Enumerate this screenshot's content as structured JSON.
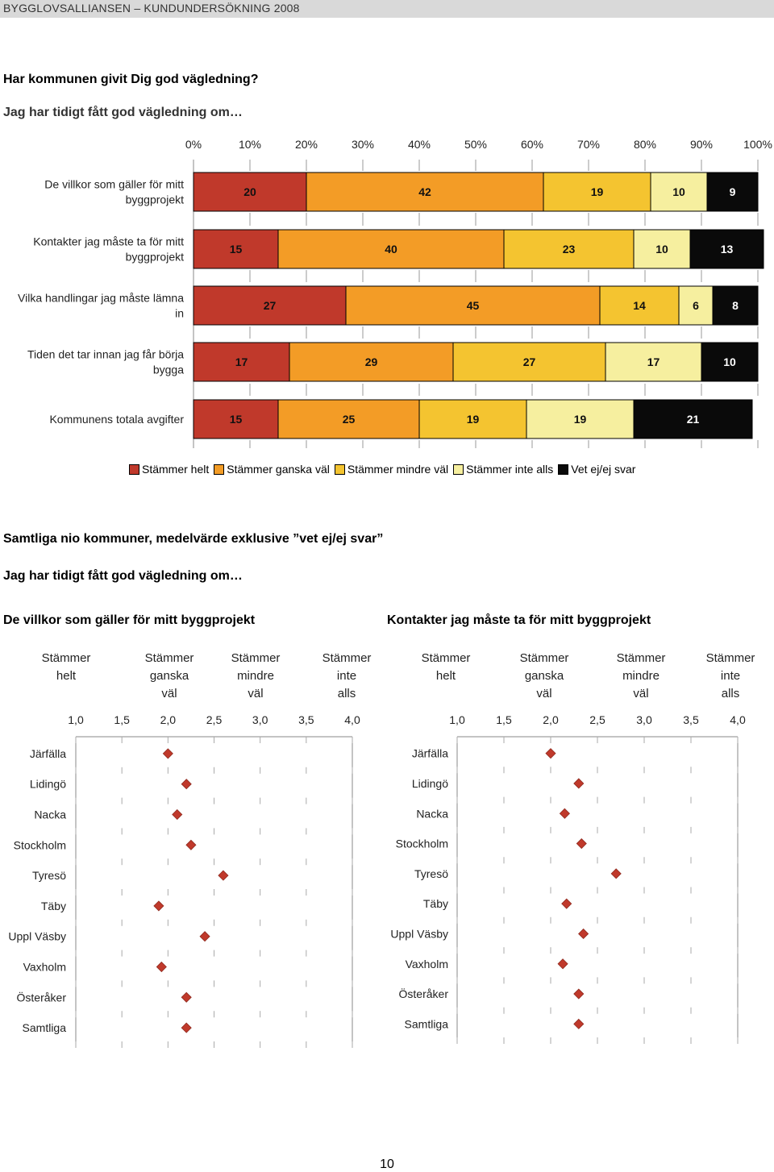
{
  "header": {
    "text": "BYGGLOVSALLIANSEN – KUNDUNDERSÖKNING 2008"
  },
  "section1": {
    "question": "Har kommunen givit Dig god vägledning?",
    "subtitle": "Jag har tidigt fått god vägledning om…"
  },
  "colors": {
    "stammer_helt": "#c0392b",
    "stammer_ganska": "#f39c26",
    "stammer_mindre": "#f4c430",
    "stammer_inte": "#f6ef9f",
    "vet_ej": "#0a0a0a",
    "marker": "#c0392b"
  },
  "chart_data": [
    {
      "type": "bar",
      "stacked": "horizontal-100%",
      "x_ticks": [
        "0%",
        "10%",
        "20%",
        "30%",
        "40%",
        "50%",
        "60%",
        "70%",
        "80%",
        "90%",
        "100%"
      ],
      "xlim": [
        0,
        100
      ],
      "categories": [
        [
          "De villkor som gäller för mitt",
          "byggprojekt"
        ],
        [
          "Kontakter jag måste ta för mitt",
          "byggprojekt"
        ],
        [
          "Vilka handlingar jag måste lämna",
          "in"
        ],
        [
          "Tiden det tar innan jag får börja",
          "bygga"
        ],
        [
          "Kommunens totala avgifter"
        ]
      ],
      "series": [
        {
          "name": "Stämmer helt",
          "values": [
            20,
            15,
            27,
            17,
            15
          ]
        },
        {
          "name": "Stämmer ganska väl",
          "values": [
            42,
            40,
            45,
            29,
            25
          ]
        },
        {
          "name": "Stämmer mindre väl",
          "values": [
            19,
            23,
            14,
            27,
            19
          ]
        },
        {
          "name": "Stämmer inte alls",
          "values": [
            10,
            10,
            6,
            17,
            19
          ]
        },
        {
          "name": "Vet ej/ej svar",
          "values": [
            9,
            13,
            8,
            10,
            21
          ]
        }
      ],
      "legend": "bottom"
    },
    {
      "type": "scatter",
      "title": "De villkor som gäller för mitt byggprojekt",
      "x_ticks": [
        "1,0",
        "1,5",
        "2,0",
        "2,5",
        "3,0",
        "3,5",
        "4,0"
      ],
      "xlim": [
        1.0,
        4.0
      ],
      "scale_labels": [
        [
          "Stämmer",
          "helt",
          ""
        ],
        [
          "Stämmer",
          "ganska",
          "väl"
        ],
        [
          "Stämmer",
          "mindre",
          "väl"
        ],
        [
          "Stämmer",
          "inte",
          "alls"
        ]
      ],
      "categories": [
        "Järfälla",
        "Lidingö",
        "Nacka",
        "Stockholm",
        "Tyresö",
        "Täby",
        "Uppl Väsby",
        "Vaxholm",
        "Österåker",
        "Samtliga"
      ],
      "values": [
        2.0,
        2.2,
        2.1,
        2.25,
        2.6,
        1.9,
        2.4,
        1.93,
        2.2,
        2.2
      ]
    },
    {
      "type": "scatter",
      "title": "Kontakter jag måste ta för mitt byggprojekt",
      "x_ticks": [
        "1,0",
        "1,5",
        "2,0",
        "2,5",
        "3,0",
        "3,5",
        "4,0"
      ],
      "xlim": [
        1.0,
        4.0
      ],
      "scale_labels": [
        [
          "Stämmer",
          "helt",
          ""
        ],
        [
          "Stämmer",
          "ganska",
          "väl"
        ],
        [
          "Stämmer",
          "mindre",
          "väl"
        ],
        [
          "Stämmer",
          "inte",
          "alls"
        ]
      ],
      "categories": [
        "Järfälla",
        "Lidingö",
        "Nacka",
        "Stockholm",
        "Tyresö",
        "Täby",
        "Uppl Väsby",
        "Vaxholm",
        "Österåker",
        "Samtliga"
      ],
      "values": [
        2.0,
        2.3,
        2.15,
        2.33,
        2.7,
        2.17,
        2.35,
        2.13,
        2.3,
        2.3
      ]
    }
  ],
  "section2": {
    "title": "Samtliga nio kommuner, medelvärde exklusive ”vet ej/ej svar”",
    "subtitle": "Jag har tidigt fått god vägledning om…"
  },
  "footer": {
    "page_number": "10"
  }
}
